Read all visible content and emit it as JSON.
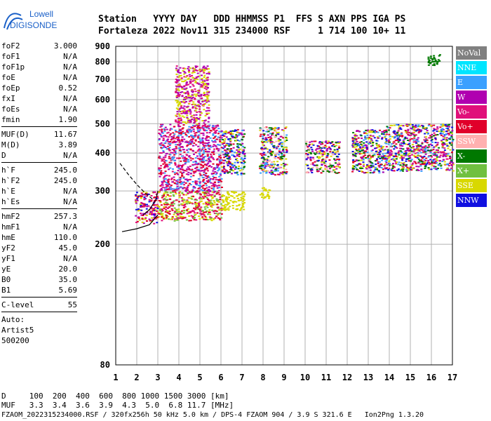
{
  "logo": {
    "line1": "Lowell",
    "line2": "DIGISONDE"
  },
  "header": {
    "line1": "Station   YYYY DAY   DDD HHMMSS P1  FFS S AXN PPS IGA PS",
    "line2": "Fortaleza 2022 Nov11 315 234000 RSF     1 714 100 10+ 11"
  },
  "params": {
    "group1": [
      {
        "label": "foF2",
        "value": "3.000"
      },
      {
        "label": "foF1",
        "value": "N/A"
      },
      {
        "label": "foF1p",
        "value": "N/A"
      },
      {
        "label": "foE",
        "value": "N/A"
      },
      {
        "label": "foEp",
        "value": "0.52"
      },
      {
        "label": "fxI",
        "value": "N/A"
      },
      {
        "label": "foEs",
        "value": "N/A"
      },
      {
        "label": "fmin",
        "value": "1.90"
      }
    ],
    "group2": [
      {
        "label": "MUF(D)",
        "value": "11.67"
      },
      {
        "label": "M(D)",
        "value": "3.89"
      },
      {
        "label": "D",
        "value": "N/A"
      }
    ],
    "group3": [
      {
        "label": "h`F",
        "value": "245.0"
      },
      {
        "label": "h`F2",
        "value": "245.0"
      },
      {
        "label": "h`E",
        "value": "N/A"
      },
      {
        "label": "h`Es",
        "value": "N/A"
      }
    ],
    "group4": [
      {
        "label": "hmF2",
        "value": "257.3"
      },
      {
        "label": "hmF1",
        "value": "N/A"
      },
      {
        "label": "hmE",
        "value": "110.0"
      },
      {
        "label": "yF2",
        "value": "45.0"
      },
      {
        "label": "yF1",
        "value": "N/A"
      },
      {
        "label": "yE",
        "value": "20.0"
      },
      {
        "label": "B0",
        "value": "35.0"
      },
      {
        "label": "B1",
        "value": "5.69"
      }
    ],
    "clevel": {
      "label": "C-level",
      "value": "55"
    },
    "auto": [
      "Auto:",
      "Artist5",
      "500200"
    ]
  },
  "legend": [
    {
      "label": "NoVal",
      "color": "#808080"
    },
    {
      "label": "NNE",
      "color": "#00e5ff"
    },
    {
      "label": "E",
      "color": "#3aa0ff"
    },
    {
      "label": "W",
      "color": "#b000b0"
    },
    {
      "label": "Vo-",
      "color": "#e0107a"
    },
    {
      "label": "Vo+",
      "color": "#e0002a"
    },
    {
      "label": "SSW",
      "color": "#ffb0b0"
    },
    {
      "label": "X-",
      "color": "#007800"
    },
    {
      "label": "X+",
      "color": "#70c040"
    },
    {
      "label": "SSE",
      "color": "#d8d800"
    },
    {
      "label": "NNW",
      "color": "#1010e0"
    }
  ],
  "bottom": {
    "line1": "D     100  200  400  600  800 1000 1500 3000 [km]",
    "line2": "MUF   3.3  3.4  3.6  3.9  4.3  5.0  6.8 11.7 [MHz]"
  },
  "footer": "FZAOM_2022315234000.RSF / 320fx256h 50 kHz 5.0 km / DPS-4 FZAOM 904 / 3.9 S 321.6 E   Ion2Png 1.3.20",
  "chart_data": {
    "type": "scatter",
    "title": "",
    "xlabel": "",
    "ylabel": "",
    "xlim": [
      1,
      17
    ],
    "ylim": [
      80,
      900
    ],
    "yscale": "log",
    "grid": true,
    "legend_position": "right",
    "x_ticks": [
      "1",
      "2",
      "3",
      "4",
      "5",
      "6",
      "7",
      "8",
      "9",
      "10",
      "11",
      "12",
      "13",
      "14",
      "15",
      "16",
      "17"
    ],
    "y_ticks": [
      "80",
      "200",
      "300",
      "400",
      "500",
      "600",
      "700",
      "800",
      "900"
    ],
    "echo_clusters": [
      {
        "x": [
          1.9,
          3.0
        ],
        "y": [
          235,
          300
        ],
        "colors": [
          "Vo+",
          "W",
          "Vo-",
          "SSE",
          "NNW"
        ]
      },
      {
        "x": [
          3.0,
          6.0
        ],
        "y": [
          240,
          300
        ],
        "colors": [
          "SSE",
          "Vo+",
          "Vo-",
          "X+"
        ]
      },
      {
        "x": [
          3.0,
          6.0
        ],
        "y": [
          300,
          500
        ],
        "colors": [
          "W",
          "Vo-",
          "E",
          "Vo+"
        ]
      },
      {
        "x": [
          3.8,
          5.4
        ],
        "y": [
          500,
          780
        ],
        "colors": [
          "SSE",
          "Vo-",
          "W"
        ]
      },
      {
        "x": [
          6.0,
          7.1
        ],
        "y": [
          260,
          300
        ],
        "colors": [
          "SSE"
        ]
      },
      {
        "x": [
          6.0,
          7.1
        ],
        "y": [
          340,
          480
        ],
        "colors": [
          "NNW",
          "W",
          "SSE",
          "Vo+",
          "E",
          "X-"
        ]
      },
      {
        "x": [
          7.8,
          9.1
        ],
        "y": [
          340,
          490
        ],
        "colors": [
          "NNW",
          "W",
          "SSE",
          "Vo+",
          "E",
          "X-",
          "SSW"
        ]
      },
      {
        "x": [
          7.8,
          8.3
        ],
        "y": [
          285,
          310
        ],
        "colors": [
          "SSE"
        ]
      },
      {
        "x": [
          10.0,
          11.6
        ],
        "y": [
          345,
          440
        ],
        "colors": [
          "NNW",
          "SSW",
          "SSE",
          "Vo+",
          "X-",
          "W"
        ]
      },
      {
        "x": [
          12.2,
          13.8
        ],
        "y": [
          345,
          480
        ],
        "colors": [
          "NNW",
          "W",
          "E",
          "X-",
          "Vo+",
          "SSE"
        ]
      },
      {
        "x": [
          13.8,
          17.0
        ],
        "y": [
          350,
          500
        ],
        "colors": [
          "W",
          "Vo-",
          "NNW",
          "E",
          "X-",
          "SSE",
          "Vo+"
        ]
      },
      {
        "x": [
          15.8,
          16.4
        ],
        "y": [
          780,
          850
        ],
        "colors": [
          "X-"
        ]
      }
    ],
    "traces": [
      {
        "name": "",
        "x": [
          2.3,
          2.6,
          2.9,
          3.0
        ],
        "y": [
          250,
          260,
          280,
          300
        ],
        "style": "solid"
      },
      {
        "name": "",
        "x": [
          1.3,
          2.0,
          2.6,
          3.0
        ],
        "y": [
          220,
          225,
          232,
          250
        ],
        "style": "solid"
      },
      {
        "name": "",
        "x": [
          1.2,
          1.6,
          2.0,
          2.4,
          2.8
        ],
        "y": [
          370,
          340,
          315,
          295,
          280
        ],
        "style": "dashed"
      }
    ]
  }
}
